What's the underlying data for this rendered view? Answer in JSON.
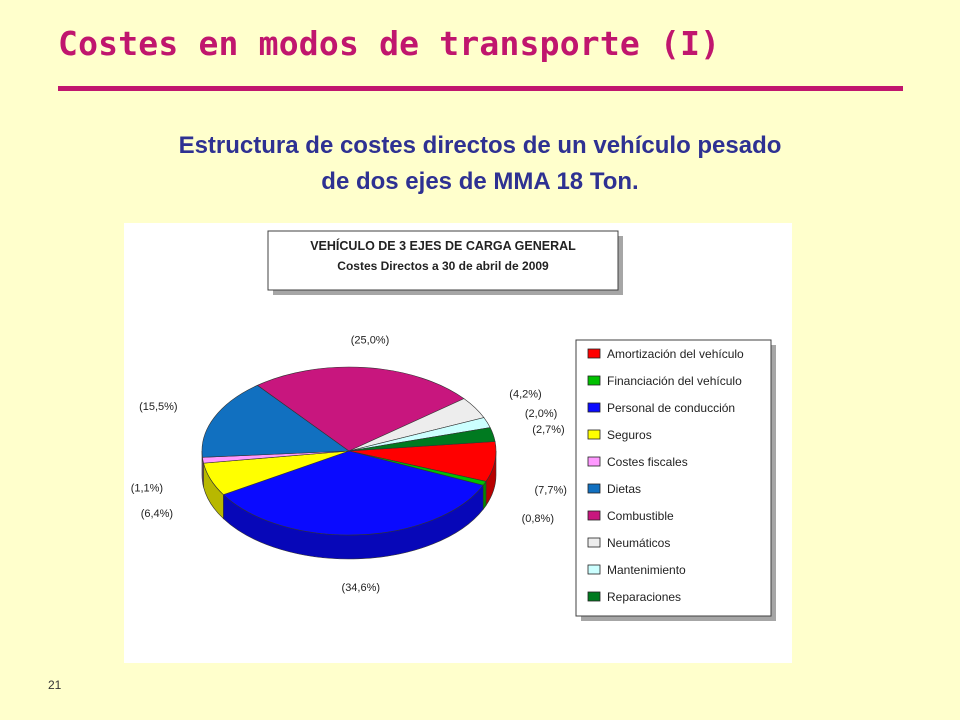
{
  "slide": {
    "title": "Costes en modos de transporte (I)",
    "subtitle_line1": "Estructura de costes directos de un vehículo pesado",
    "subtitle_line2": "de dos ejes de MMA 18 Ton.",
    "page_number": "21",
    "colors": {
      "background": "#ffffcc",
      "title": "#c0166e",
      "subtitle": "#2e3192"
    }
  },
  "chart_data": {
    "type": "pie",
    "title": "VEHÍCULO DE 3 EJES DE CARGA GENERAL",
    "subtitle": "Costes Directos a 30 de abril de 2009",
    "legend_position": "right",
    "slices": [
      {
        "name": "Amortización del vehículo",
        "value": 7.7,
        "label": "(7,7%)",
        "color": "#ff0000"
      },
      {
        "name": "Financiación del vehículo",
        "value": 0.8,
        "label": "(0,8%)",
        "color": "#00c000"
      },
      {
        "name": "Personal de conducción",
        "value": 34.6,
        "label": "(34,6%)",
        "color": "#0a0aff"
      },
      {
        "name": "Seguros",
        "value": 6.4,
        "label": "(6,4%)",
        "color": "#ffff00"
      },
      {
        "name": "Costes fiscales",
        "value": 1.1,
        "label": "(1,1%)",
        "color": "#ff99ff"
      },
      {
        "name": "Dietas",
        "value": 15.5,
        "label": "(15,5%)",
        "color": "#1170c0"
      },
      {
        "name": "Combustible",
        "value": 25.0,
        "label": "(25,0%)",
        "color": "#c8167e"
      },
      {
        "name": "Neumáticos",
        "value": 4.2,
        "label": "(4,2%)",
        "color": "#ededed"
      },
      {
        "name": "Mantenimiento",
        "value": 2.0,
        "label": "(2,0%)",
        "color": "#ccffff"
      },
      {
        "name": "Reparaciones",
        "value": 2.7,
        "label": "(2,7%)",
        "color": "#007a20"
      }
    ]
  }
}
